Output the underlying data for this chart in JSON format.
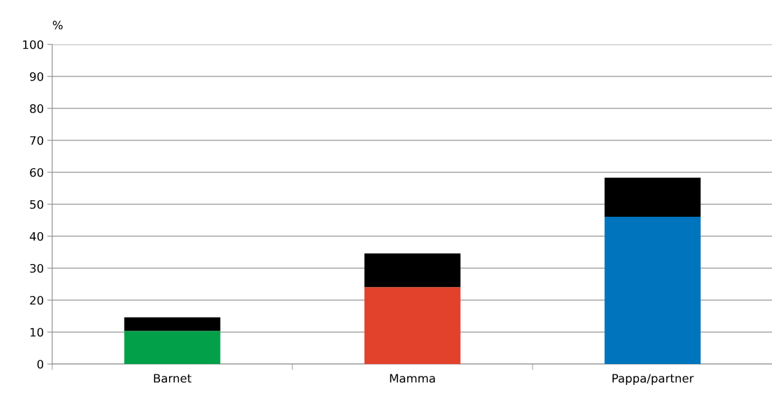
{
  "chart_data": {
    "type": "bar",
    "ylabel": "%",
    "categories": [
      "Barnet",
      "Mamma",
      "Pappa/partner"
    ],
    "stacked": true,
    "series": [
      {
        "colors": [
          "#03a04a",
          "#e2412c",
          "#0074bd"
        ],
        "values": [
          10.4,
          24.1,
          46.1
        ]
      },
      {
        "color": "#000000",
        "values": [
          4.2,
          10.5,
          12.2
        ]
      }
    ],
    "ylim": [
      0,
      100
    ],
    "yticks": [
      0,
      10,
      20,
      30,
      40,
      50,
      60,
      70,
      80,
      90,
      100
    ],
    "grid": "y",
    "legend": false
  }
}
